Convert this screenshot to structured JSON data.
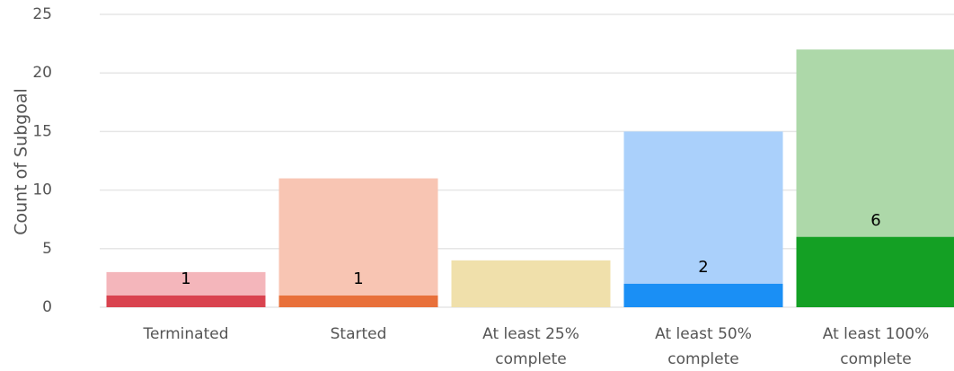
{
  "chart_data": {
    "type": "bar",
    "y_label": "Count of Subgoal",
    "categories": [
      [
        "Terminated"
      ],
      [
        "Started"
      ],
      [
        "At least 25%",
        "complete"
      ],
      [
        "At least 50%",
        "complete"
      ],
      [
        "At least 100%",
        "complete"
      ]
    ],
    "series": [
      {
        "colors": [
          "#f4b6bb",
          "#f8c5b3",
          "#f0e0ab",
          "#aad0fb",
          "#add8a9"
        ],
        "values": [
          3,
          11,
          4,
          15,
          22
        ]
      },
      {
        "colors": [
          "#d9434f",
          "#e8703a",
          "#e0b84a",
          "#1a8ff5",
          "#14a024"
        ],
        "values": [
          1,
          1,
          null,
          2,
          6
        ],
        "data_labels": true
      }
    ],
    "ylim": [
      0,
      25
    ],
    "yticks": [
      0,
      5,
      10,
      15,
      20,
      25
    ],
    "grid": true
  }
}
